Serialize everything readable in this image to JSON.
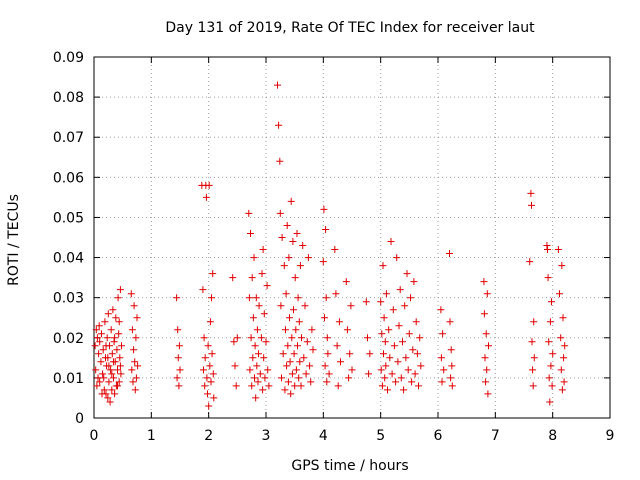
{
  "chart_data": {
    "type": "scatter",
    "title": "Day 131 of 2019, Rate Of TEC Index for receiver laut",
    "xlabel": "GPS time / hours",
    "ylabel": "ROTI / TECUs",
    "xlim": [
      0,
      9
    ],
    "ylim": [
      0,
      0.09
    ],
    "xticks": [
      "0",
      "1",
      "2",
      "3",
      "4",
      "5",
      "6",
      "7",
      "8",
      "9"
    ],
    "yticks": [
      "0",
      "0.01",
      "0.02",
      "0.03",
      "0.04",
      "0.05",
      "0.06",
      "0.07",
      "0.08",
      "0.09"
    ],
    "grid": true,
    "marker": "+",
    "color": "#e00000",
    "series": [
      {
        "name": "ROTI",
        "points": [
          [
            0.02,
            0.018
          ],
          [
            0.03,
            0.012
          ],
          [
            0.04,
            0.022
          ],
          [
            0.05,
            0.008
          ],
          [
            0.06,
            0.02
          ],
          [
            0.07,
            0.01
          ],
          [
            0.08,
            0.016
          ],
          [
            0.09,
            0.023
          ],
          [
            0.1,
            0.019
          ],
          [
            0.1,
            0.009
          ],
          [
            0.12,
            0.014
          ],
          [
            0.13,
            0.021
          ],
          [
            0.15,
            0.011
          ],
          [
            0.16,
            0.017
          ],
          [
            0.18,
            0.007
          ],
          [
            0.19,
            0.024
          ],
          [
            0.2,
            0.015
          ],
          [
            0.21,
            0.006
          ],
          [
            0.22,
            0.013
          ],
          [
            0.23,
            0.02
          ],
          [
            0.24,
            0.005
          ],
          [
            0.25,
            0.026
          ],
          [
            0.26,
            0.009
          ],
          [
            0.27,
            0.018
          ],
          [
            0.28,
            0.004
          ],
          [
            0.29,
            0.012
          ],
          [
            0.3,
            0.022
          ],
          [
            0.31,
            0.007
          ],
          [
            0.32,
            0.016
          ],
          [
            0.33,
            0.027
          ],
          [
            0.34,
            0.01
          ],
          [
            0.35,
            0.019
          ],
          [
            0.36,
            0.006
          ],
          [
            0.37,
            0.014
          ],
          [
            0.38,
            0.025
          ],
          [
            0.39,
            0.008
          ],
          [
            0.4,
            0.017
          ],
          [
            0.41,
            0.012
          ],
          [
            0.42,
            0.03
          ],
          [
            0.43,
            0.021
          ],
          [
            0.44,
            0.009
          ],
          [
            0.45,
            0.015
          ],
          [
            0.46,
            0.032
          ],
          [
            0.47,
            0.011
          ],
          [
            0.48,
            0.018
          ],
          [
            0.17,
            0.01
          ],
          [
            0.21,
            0.018
          ],
          [
            0.26,
            0.013
          ],
          [
            0.31,
            0.011
          ],
          [
            0.36,
            0.02
          ],
          [
            0.41,
            0.008
          ],
          [
            0.46,
            0.013
          ],
          [
            0.14,
            0.006
          ],
          [
            0.24,
            0.015
          ],
          [
            0.34,
            0.014
          ],
          [
            0.44,
            0.024
          ],
          [
            0.65,
            0.031
          ],
          [
            0.66,
            0.012
          ],
          [
            0.67,
            0.022
          ],
          [
            0.68,
            0.009
          ],
          [
            0.69,
            0.017
          ],
          [
            0.7,
            0.028
          ],
          [
            0.71,
            0.014
          ],
          [
            0.72,
            0.007
          ],
          [
            0.73,
            0.02
          ],
          [
            0.74,
            0.01
          ],
          [
            0.75,
            0.025
          ],
          [
            0.76,
            0.013
          ],
          [
            1.44,
            0.03
          ],
          [
            1.45,
            0.01
          ],
          [
            1.46,
            0.022
          ],
          [
            1.47,
            0.015
          ],
          [
            1.48,
            0.008
          ],
          [
            1.49,
            0.018
          ],
          [
            1.5,
            0.012
          ],
          [
            1.88,
            0.058
          ],
          [
            1.9,
            0.032
          ],
          [
            1.91,
            0.012
          ],
          [
            1.92,
            0.02
          ],
          [
            1.93,
            0.008
          ],
          [
            1.94,
            0.015
          ],
          [
            1.95,
            0.058
          ],
          [
            1.96,
            0.055
          ],
          [
            1.97,
            0.01
          ],
          [
            1.98,
            0.006
          ],
          [
            1.99,
            0.018
          ],
          [
            2.0,
            0.003
          ],
          [
            2.01,
            0.058
          ],
          [
            2.02,
            0.013
          ],
          [
            2.03,
            0.024
          ],
          [
            2.04,
            0.009
          ],
          [
            2.05,
            0.03
          ],
          [
            2.06,
            0.016
          ],
          [
            2.07,
            0.036
          ],
          [
            2.08,
            0.011
          ],
          [
            2.09,
            0.005
          ],
          [
            2.42,
            0.035
          ],
          [
            2.44,
            0.019
          ],
          [
            2.46,
            0.013
          ],
          [
            2.48,
            0.008
          ],
          [
            2.5,
            0.02
          ],
          [
            2.7,
            0.051
          ],
          [
            2.71,
            0.03
          ],
          [
            2.72,
            0.012
          ],
          [
            2.73,
            0.046
          ],
          [
            2.74,
            0.02
          ],
          [
            2.75,
            0.008
          ],
          [
            2.76,
            0.035
          ],
          [
            2.77,
            0.015
          ],
          [
            2.78,
            0.025
          ],
          [
            2.79,
            0.04
          ],
          [
            2.8,
            0.01
          ],
          [
            2.81,
            0.018
          ],
          [
            2.82,
            0.005
          ],
          [
            2.83,
            0.03
          ],
          [
            2.84,
            0.013
          ],
          [
            2.85,
            0.022
          ],
          [
            2.86,
            0.009
          ],
          [
            2.87,
            0.016
          ],
          [
            2.88,
            0.028
          ],
          [
            2.9,
            0.011
          ],
          [
            2.92,
            0.02
          ],
          [
            2.93,
            0.036
          ],
          [
            2.94,
            0.007
          ],
          [
            2.95,
            0.042
          ],
          [
            2.96,
            0.015
          ],
          [
            2.97,
            0.026
          ],
          [
            2.98,
            0.01
          ],
          [
            3.0,
            0.019
          ],
          [
            3.02,
            0.033
          ],
          [
            3.03,
            0.012
          ],
          [
            3.05,
            0.008
          ],
          [
            3.2,
            0.083
          ],
          [
            3.22,
            0.073
          ],
          [
            3.24,
            0.064
          ],
          [
            3.25,
            0.051
          ],
          [
            3.26,
            0.028
          ],
          [
            3.27,
            0.01
          ],
          [
            3.28,
            0.045
          ],
          [
            3.3,
            0.016
          ],
          [
            3.32,
            0.038
          ],
          [
            3.33,
            0.007
          ],
          [
            3.34,
            0.022
          ],
          [
            3.35,
            0.031
          ],
          [
            3.36,
            0.013
          ],
          [
            3.37,
            0.048
          ],
          [
            3.38,
            0.018
          ],
          [
            3.39,
            0.009
          ],
          [
            3.4,
            0.04
          ],
          [
            3.41,
            0.025
          ],
          [
            3.42,
            0.014
          ],
          [
            3.43,
            0.006
          ],
          [
            3.44,
            0.054
          ],
          [
            3.45,
            0.02
          ],
          [
            3.46,
            0.011
          ],
          [
            3.47,
            0.044
          ],
          [
            3.48,
            0.027
          ],
          [
            3.49,
            0.016
          ],
          [
            3.5,
            0.008
          ],
          [
            3.51,
            0.035
          ],
          [
            3.52,
            0.022
          ],
          [
            3.53,
            0.012
          ],
          [
            3.54,
            0.046
          ],
          [
            3.55,
            0.018
          ],
          [
            3.56,
            0.03
          ],
          [
            3.57,
            0.01
          ],
          [
            3.58,
            0.024
          ],
          [
            3.59,
            0.014
          ],
          [
            3.6,
            0.038
          ],
          [
            3.61,
            0.008
          ],
          [
            3.62,
            0.02
          ],
          [
            3.64,
            0.043
          ],
          [
            3.66,
            0.015
          ],
          [
            3.68,
            0.028
          ],
          [
            3.7,
            0.011
          ],
          [
            3.72,
            0.019
          ],
          [
            3.74,
            0.04
          ],
          [
            3.76,
            0.013
          ],
          [
            3.78,
            0.009
          ],
          [
            3.8,
            0.022
          ],
          [
            3.82,
            0.017
          ],
          [
            4.0,
            0.039
          ],
          [
            4.01,
            0.052
          ],
          [
            4.02,
            0.025
          ],
          [
            4.03,
            0.013
          ],
          [
            4.04,
            0.047
          ],
          [
            4.05,
            0.03
          ],
          [
            4.06,
            0.009
          ],
          [
            4.07,
            0.02
          ],
          [
            4.08,
            0.016
          ],
          [
            4.1,
            0.011
          ],
          [
            4.2,
            0.042
          ],
          [
            4.22,
            0.031
          ],
          [
            4.24,
            0.018
          ],
          [
            4.26,
            0.008
          ],
          [
            4.28,
            0.024
          ],
          [
            4.3,
            0.014
          ],
          [
            4.4,
            0.034
          ],
          [
            4.42,
            0.022
          ],
          [
            4.44,
            0.01
          ],
          [
            4.46,
            0.016
          ],
          [
            4.48,
            0.028
          ],
          [
            4.5,
            0.012
          ],
          [
            4.75,
            0.029
          ],
          [
            4.77,
            0.02
          ],
          [
            4.79,
            0.011
          ],
          [
            4.81,
            0.016
          ],
          [
            5.0,
            0.029
          ],
          [
            5.01,
            0.012
          ],
          [
            5.02,
            0.021
          ],
          [
            5.03,
            0.008
          ],
          [
            5.04,
            0.038
          ],
          [
            5.05,
            0.016
          ],
          [
            5.06,
            0.025
          ],
          [
            5.07,
            0.01
          ],
          [
            5.08,
            0.019
          ],
          [
            5.09,
            0.013
          ],
          [
            5.1,
            0.031
          ],
          [
            5.12,
            0.007
          ],
          [
            5.14,
            0.022
          ],
          [
            5.16,
            0.015
          ],
          [
            5.18,
            0.044
          ],
          [
            5.2,
            0.011
          ],
          [
            5.22,
            0.027
          ],
          [
            5.24,
            0.018
          ],
          [
            5.26,
            0.009
          ],
          [
            5.28,
            0.04
          ],
          [
            5.3,
            0.014
          ],
          [
            5.32,
            0.023
          ],
          [
            5.34,
            0.032
          ],
          [
            5.36,
            0.01
          ],
          [
            5.38,
            0.019
          ],
          [
            5.4,
            0.007
          ],
          [
            5.42,
            0.028
          ],
          [
            5.44,
            0.015
          ],
          [
            5.46,
            0.036
          ],
          [
            5.48,
            0.012
          ],
          [
            5.5,
            0.021
          ],
          [
            5.52,
            0.03
          ],
          [
            5.54,
            0.009
          ],
          [
            5.56,
            0.017
          ],
          [
            5.58,
            0.034
          ],
          [
            5.6,
            0.011
          ],
          [
            5.62,
            0.024
          ],
          [
            5.64,
            0.016
          ],
          [
            5.66,
            0.008
          ],
          [
            5.68,
            0.02
          ],
          [
            5.7,
            0.013
          ],
          [
            6.05,
            0.027
          ],
          [
            6.06,
            0.015
          ],
          [
            6.07,
            0.009
          ],
          [
            6.08,
            0.021
          ],
          [
            6.1,
            0.012
          ],
          [
            6.2,
            0.041
          ],
          [
            6.21,
            0.024
          ],
          [
            6.22,
            0.01
          ],
          [
            6.23,
            0.017
          ],
          [
            6.24,
            0.013
          ],
          [
            6.25,
            0.008
          ],
          [
            6.8,
            0.034
          ],
          [
            6.81,
            0.026
          ],
          [
            6.82,
            0.015
          ],
          [
            6.83,
            0.009
          ],
          [
            6.84,
            0.021
          ],
          [
            6.85,
            0.012
          ],
          [
            6.86,
            0.031
          ],
          [
            6.87,
            0.006
          ],
          [
            6.88,
            0.018
          ],
          [
            7.6,
            0.039
          ],
          [
            7.62,
            0.056
          ],
          [
            7.63,
            0.053
          ],
          [
            7.64,
            0.019
          ],
          [
            7.65,
            0.012
          ],
          [
            7.66,
            0.008
          ],
          [
            7.67,
            0.024
          ],
          [
            7.68,
            0.015
          ],
          [
            7.9,
            0.043
          ],
          [
            7.91,
            0.042
          ],
          [
            7.92,
            0.035
          ],
          [
            7.93,
            0.019
          ],
          [
            7.94,
            0.01
          ],
          [
            7.95,
            0.004
          ],
          [
            7.96,
            0.024
          ],
          [
            7.97,
            0.013
          ],
          [
            7.98,
            0.029
          ],
          [
            7.99,
            0.008
          ],
          [
            8.0,
            0.016
          ],
          [
            8.1,
            0.042
          ],
          [
            8.12,
            0.031
          ],
          [
            8.14,
            0.02
          ],
          [
            8.15,
            0.012
          ],
          [
            8.16,
            0.038
          ],
          [
            8.17,
            0.007
          ],
          [
            8.18,
            0.025
          ],
          [
            8.19,
            0.015
          ],
          [
            8.2,
            0.009
          ],
          [
            8.21,
            0.018
          ]
        ]
      }
    ]
  }
}
